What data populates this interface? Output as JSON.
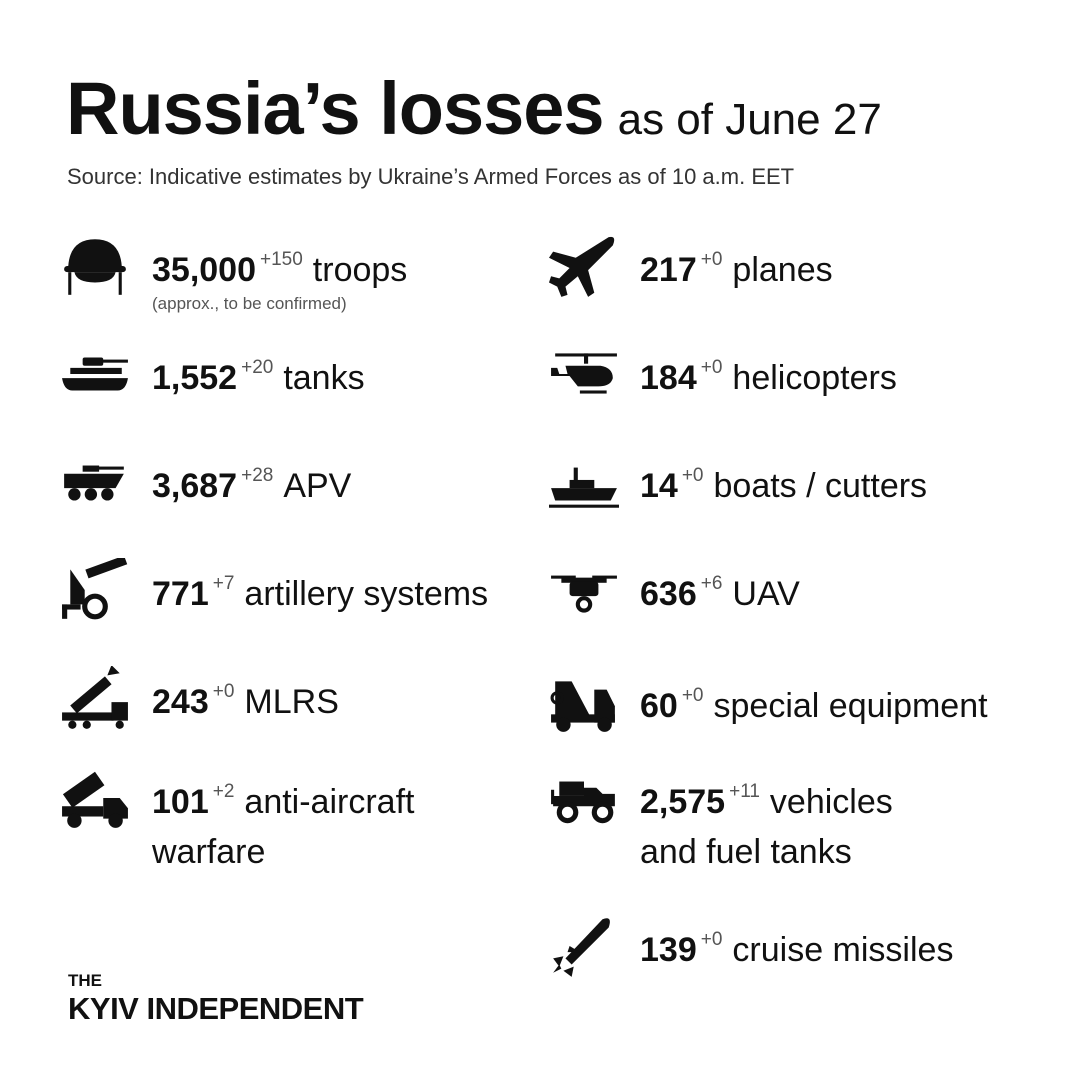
{
  "header": {
    "title": "Russia’s losses",
    "subtitle": "as of June 27",
    "source": "Source: Indicative estimates by Ukraine’s Armed Forces as of 10 a.m. EET"
  },
  "stats": {
    "left": [
      {
        "icon": "helmet-icon",
        "value": "35,000",
        "delta": "+150",
        "label": "troops",
        "note": "(approx., to be confirmed)"
      },
      {
        "icon": "tank-icon",
        "value": "1,552",
        "delta": "+20",
        "label": "tanks"
      },
      {
        "icon": "apv-icon",
        "value": "3,687",
        "delta": "+28",
        "label": "APV"
      },
      {
        "icon": "artillery-icon",
        "value": "771",
        "delta": "+7",
        "label": "artillery systems"
      },
      {
        "icon": "mlrs-icon",
        "value": "243",
        "delta": "+0",
        "label": "MLRS"
      },
      {
        "icon": "anti-aircraft-icon",
        "value": "101",
        "delta": "+2",
        "label": "anti-aircraft",
        "label2": "warfare"
      }
    ],
    "right": [
      {
        "icon": "plane-icon",
        "value": "217",
        "delta": "+0",
        "label": "planes"
      },
      {
        "icon": "helicopter-icon",
        "value": "184",
        "delta": "+0",
        "label": "helicopters"
      },
      {
        "icon": "boat-icon",
        "value": "14",
        "delta": "+0",
        "label": "boats / cutters"
      },
      {
        "icon": "drone-icon",
        "value": "636",
        "delta": "+6",
        "label": "UAV"
      },
      {
        "icon": "crane-truck-icon",
        "value": "60",
        "delta": "+0",
        "label": "special equipment"
      },
      {
        "icon": "jeep-icon",
        "value": "2,575",
        "delta": "+11",
        "label": "vehicles",
        "label2": "and fuel tanks"
      },
      {
        "icon": "missile-icon",
        "value": "139",
        "delta": "+0",
        "label": "cruise missiles"
      }
    ]
  },
  "logo": {
    "line1": "THE",
    "line2": "KYIV INDEPENDENT"
  }
}
